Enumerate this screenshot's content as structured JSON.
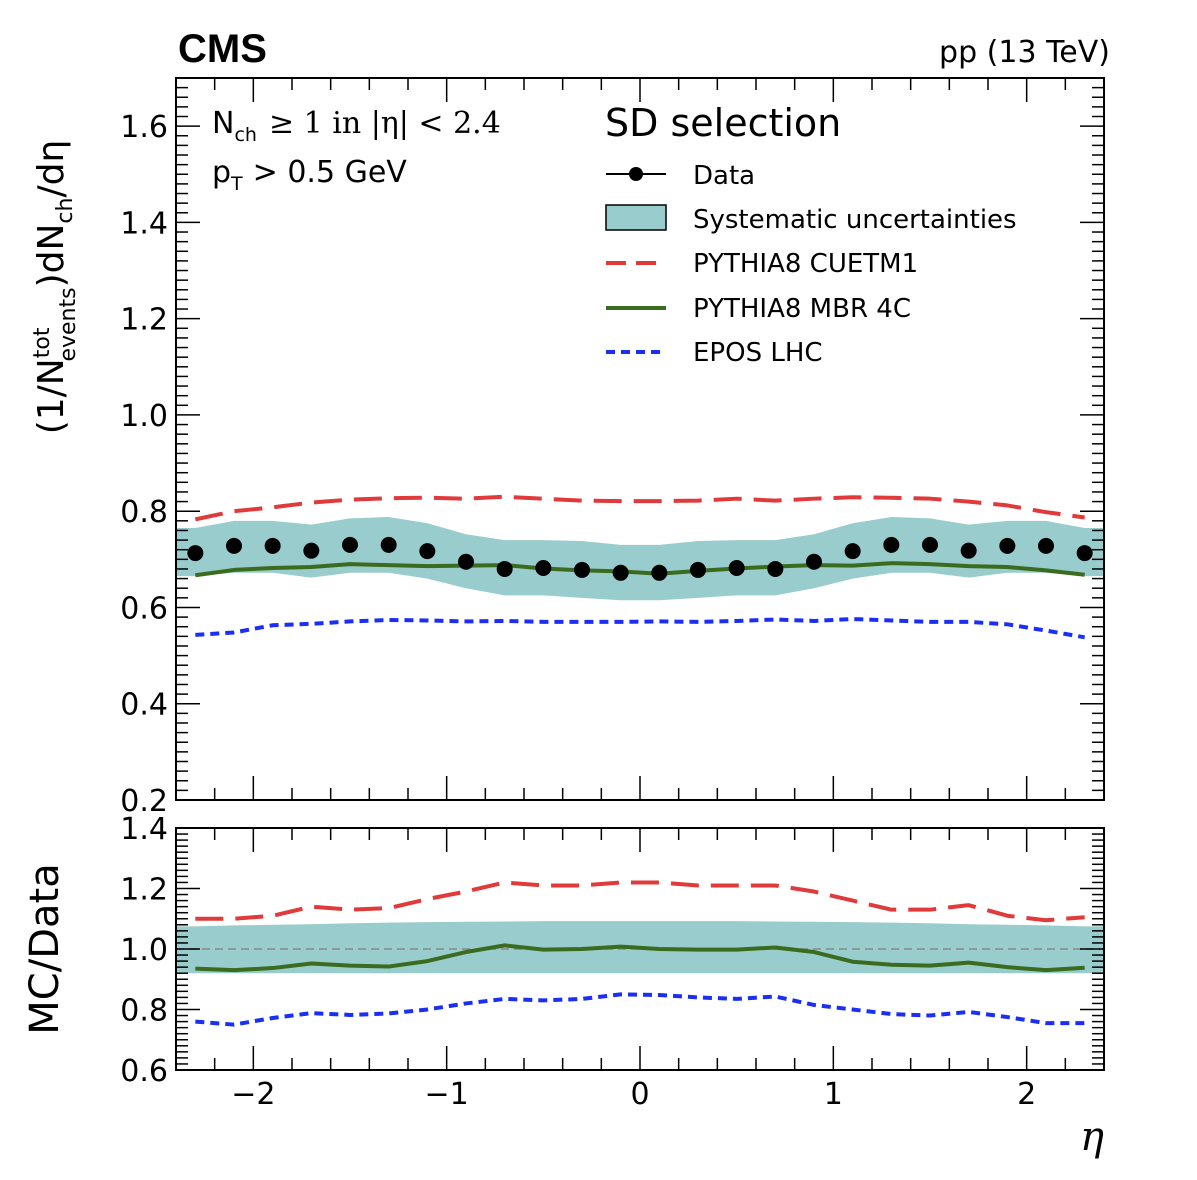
{
  "header": {
    "experiment": "CMS",
    "energy": "pp (13 TeV)"
  },
  "annotations": {
    "line1_nch": "N",
    "line1_nch_sub": "ch",
    "line1_cond": "≥ 1 in |η| < 2.4",
    "line2_pt": "p",
    "line2_pt_sub": "T",
    "line2_cond": "> 0.5 GeV"
  },
  "legend": {
    "title": "SD selection",
    "data": "Data",
    "syst": "Systematic uncertainties",
    "cuetm1": "PYTHIA8 CUETM1",
    "mbr": "PYTHIA8 MBR 4C",
    "epos": "EPOS LHC"
  },
  "labels": {
    "ylabel_main_prefix": "(1/N",
    "ylabel_main_sup": "tot",
    "ylabel_main_sub": "events",
    "ylabel_main_suffix": ")dN",
    "ylabel_main_sub2": "ch",
    "ylabel_main_tail": "/dη",
    "ylabel_ratio": "MC/Data",
    "xlabel": "η"
  },
  "colors": {
    "data": "#000000",
    "band": "#99cccc",
    "cuetm1": "#e03a3a",
    "mbr": "#3a6b1e",
    "epos": "#1a2ef5"
  },
  "chart_data": [
    {
      "type": "line",
      "panel": "main",
      "ylim": [
        0.2,
        1.7
      ],
      "xlim": [
        -2.4,
        2.4
      ],
      "yticks": [
        "0.2",
        "0.4",
        "0.6",
        "0.8",
        "1.0",
        "1.2",
        "1.4",
        "1.6"
      ],
      "x": [
        -2.3,
        -2.1,
        -1.9,
        -1.7,
        -1.5,
        -1.3,
        -1.1,
        -0.9,
        -0.7,
        -0.5,
        -0.3,
        -0.1,
        0.1,
        0.3,
        0.5,
        0.7,
        0.9,
        1.1,
        1.3,
        1.5,
        1.7,
        1.9,
        2.1,
        2.3
      ],
      "series": [
        {
          "name": "Data",
          "values": [
            0.713,
            0.728,
            0.728,
            0.718,
            0.73,
            0.73,
            0.717,
            0.695,
            0.68,
            0.682,
            0.678,
            0.672,
            0.672,
            0.678,
            0.682,
            0.68,
            0.695,
            0.717,
            0.73,
            0.73,
            0.718,
            0.728,
            0.728,
            0.713
          ]
        },
        {
          "name": "Systematic uncertainties (low)",
          "values": [
            0.665,
            0.672,
            0.672,
            0.662,
            0.672,
            0.672,
            0.66,
            0.64,
            0.625,
            0.625,
            0.62,
            0.615,
            0.615,
            0.62,
            0.625,
            0.625,
            0.64,
            0.66,
            0.672,
            0.672,
            0.662,
            0.672,
            0.672,
            0.665
          ]
        },
        {
          "name": "Systematic uncertainties (high)",
          "values": [
            0.765,
            0.78,
            0.78,
            0.772,
            0.785,
            0.788,
            0.775,
            0.752,
            0.74,
            0.74,
            0.738,
            0.73,
            0.73,
            0.738,
            0.74,
            0.74,
            0.752,
            0.775,
            0.788,
            0.785,
            0.772,
            0.78,
            0.78,
            0.765
          ]
        },
        {
          "name": "PYTHIA8 CUETM1",
          "values": [
            0.783,
            0.8,
            0.808,
            0.818,
            0.824,
            0.827,
            0.828,
            0.826,
            0.83,
            0.826,
            0.822,
            0.821,
            0.821,
            0.822,
            0.826,
            0.822,
            0.826,
            0.829,
            0.828,
            0.826,
            0.82,
            0.812,
            0.798,
            0.787
          ]
        },
        {
          "name": "PYTHIA8 MBR 4C",
          "values": [
            0.667,
            0.678,
            0.682,
            0.684,
            0.69,
            0.688,
            0.686,
            0.687,
            0.688,
            0.681,
            0.677,
            0.675,
            0.67,
            0.676,
            0.681,
            0.685,
            0.688,
            0.687,
            0.692,
            0.69,
            0.686,
            0.684,
            0.677,
            0.668
          ]
        },
        {
          "name": "EPOS LHC",
          "values": [
            0.543,
            0.548,
            0.563,
            0.566,
            0.571,
            0.574,
            0.573,
            0.571,
            0.572,
            0.57,
            0.57,
            0.57,
            0.571,
            0.57,
            0.572,
            0.575,
            0.572,
            0.576,
            0.573,
            0.57,
            0.57,
            0.565,
            0.552,
            0.538
          ]
        }
      ]
    },
    {
      "type": "line",
      "panel": "ratio",
      "ylim": [
        0.6,
        1.4
      ],
      "xlim": [
        -2.4,
        2.4
      ],
      "yticks": [
        "0.6",
        "0.8",
        "1.0",
        "1.2",
        "1.4"
      ],
      "xticks": [
        "−2",
        "−1",
        "0",
        "1",
        "2"
      ],
      "xtick_values": [
        -2,
        -1,
        0,
        1,
        2
      ],
      "reference_line": 1.0,
      "x": [
        -2.3,
        -2.1,
        -1.9,
        -1.7,
        -1.5,
        -1.3,
        -1.1,
        -0.9,
        -0.7,
        -0.5,
        -0.3,
        -0.1,
        0.1,
        0.3,
        0.5,
        0.7,
        0.9,
        1.1,
        1.3,
        1.5,
        1.7,
        1.9,
        2.1,
        2.3
      ],
      "series": [
        {
          "name": "Systematic uncertainties (low)",
          "values": [
            0.92,
            0.92,
            0.92,
            0.92,
            0.92,
            0.92,
            0.92,
            0.92,
            0.92,
            0.92,
            0.92,
            0.92,
            0.92,
            0.92,
            0.92,
            0.92,
            0.92,
            0.92,
            0.92,
            0.92,
            0.92,
            0.92,
            0.92,
            0.92
          ]
        },
        {
          "name": "Systematic uncertainties (high)",
          "values": [
            1.075,
            1.078,
            1.08,
            1.082,
            1.085,
            1.087,
            1.089,
            1.09,
            1.091,
            1.092,
            1.092,
            1.092,
            1.092,
            1.092,
            1.092,
            1.091,
            1.09,
            1.089,
            1.087,
            1.085,
            1.082,
            1.08,
            1.078,
            1.075
          ]
        },
        {
          "name": "PYTHIA8 CUETM1",
          "values": [
            1.1,
            1.1,
            1.11,
            1.14,
            1.13,
            1.135,
            1.165,
            1.19,
            1.22,
            1.21,
            1.21,
            1.22,
            1.22,
            1.21,
            1.21,
            1.21,
            1.19,
            1.16,
            1.13,
            1.13,
            1.145,
            1.11,
            1.095,
            1.105
          ]
        },
        {
          "name": "PYTHIA8 MBR 4C",
          "values": [
            0.935,
            0.93,
            0.937,
            0.952,
            0.945,
            0.942,
            0.96,
            0.99,
            1.012,
            0.998,
            1.0,
            1.008,
            1.0,
            0.998,
            0.998,
            1.005,
            0.99,
            0.958,
            0.948,
            0.945,
            0.955,
            0.94,
            0.93,
            0.938
          ]
        },
        {
          "name": "EPOS LHC",
          "values": [
            0.76,
            0.75,
            0.772,
            0.788,
            0.782,
            0.787,
            0.8,
            0.82,
            0.835,
            0.83,
            0.835,
            0.85,
            0.848,
            0.84,
            0.835,
            0.843,
            0.815,
            0.8,
            0.785,
            0.78,
            0.792,
            0.775,
            0.755,
            0.755
          ]
        }
      ]
    }
  ]
}
